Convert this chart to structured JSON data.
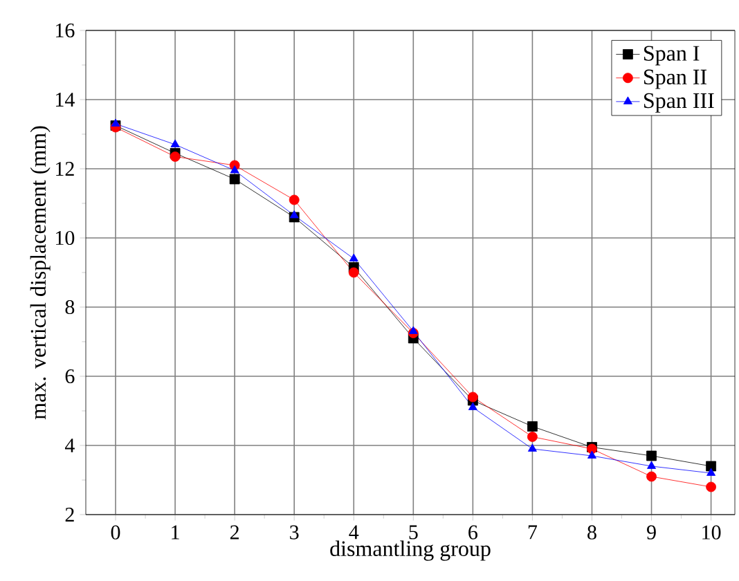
{
  "chart_data": {
    "type": "line",
    "xlabel": "dismantling group",
    "ylabel": "max. vertical displacement (mm)",
    "x": [
      0,
      1,
      2,
      3,
      4,
      5,
      6,
      7,
      8,
      9,
      10
    ],
    "xlim": [
      -0.5,
      10.4
    ],
    "xticks": [
      0,
      1,
      2,
      3,
      4,
      5,
      6,
      7,
      8,
      9,
      10
    ],
    "ylim": [
      2,
      16
    ],
    "yticks": [
      2,
      4,
      6,
      8,
      10,
      12,
      14,
      16
    ],
    "grid": true,
    "legend": "top right",
    "line_style": "solid",
    "series": [
      {
        "name": "Span I",
        "color": "#000000",
        "marker": "square",
        "values": [
          13.25,
          12.45,
          11.7,
          10.6,
          9.15,
          7.1,
          5.3,
          4.55,
          3.95,
          3.7,
          3.4
        ]
      },
      {
        "name": "Span II",
        "color": "#ff0000",
        "marker": "circle",
        "values": [
          13.2,
          12.35,
          12.1,
          11.1,
          9.0,
          7.25,
          5.4,
          4.25,
          3.9,
          3.1,
          2.8
        ]
      },
      {
        "name": "Span III",
        "color": "#0000ff",
        "marker": "triangle",
        "values": [
          13.3,
          12.7,
          11.95,
          10.65,
          9.4,
          7.3,
          5.1,
          3.9,
          3.7,
          3.4,
          3.2
        ]
      }
    ]
  }
}
